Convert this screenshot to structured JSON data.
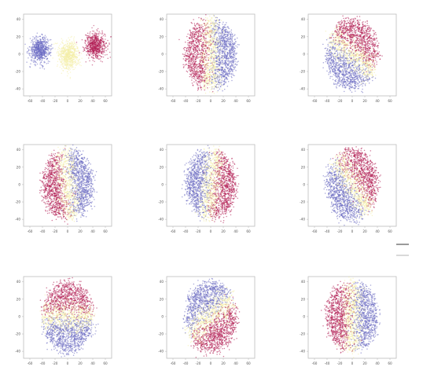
{
  "palette": {
    "blue": "#6a6ac2",
    "yellow": "#f4efa8",
    "red": "#b21f55",
    "frame": "#bdbdbd",
    "tick_text": "#555555"
  },
  "legend_stub_colors": [
    "#9a9a9a",
    "#d9d9d9"
  ],
  "chart_data": [
    {
      "type": "scatter",
      "title": "",
      "xlabel": "",
      "ylabel": "",
      "xlim": [
        -70,
        70
      ],
      "ylim": [
        -48,
        46
      ],
      "xticks": [
        "-60",
        "-40",
        "-20",
        "0",
        "20",
        "40",
        "60"
      ],
      "yticks": [
        "40",
        "20",
        "0",
        "-20",
        "-40"
      ],
      "grid": false,
      "layout_kind": "separated",
      "series": [
        {
          "color": "blue",
          "center": [
            -44,
            5
          ],
          "spread": [
            8,
            7
          ],
          "n": 700
        },
        {
          "color": "yellow",
          "center": [
            2,
            -1
          ],
          "spread": [
            8,
            8
          ],
          "n": 700
        },
        {
          "color": "red",
          "center": [
            44,
            10
          ],
          "spread": [
            8,
            7
          ],
          "n": 700
        }
      ]
    },
    {
      "type": "scatter",
      "title": "",
      "xlabel": "",
      "ylabel": "",
      "xlim": [
        -70,
        70
      ],
      "ylim": [
        -48,
        46
      ],
      "xticks": [
        "-60",
        "-40",
        "-20",
        "0",
        "20",
        "40",
        "60"
      ],
      "yticks": [
        "40",
        "20",
        "0",
        "-20",
        "-40"
      ],
      "grid": false,
      "layout_kind": "disc",
      "red_side_angle_deg": 180
    },
    {
      "type": "scatter",
      "title": "",
      "xlabel": "",
      "ylabel": "",
      "xlim": [
        -70,
        70
      ],
      "ylim": [
        -48,
        46
      ],
      "xticks": [
        "-60",
        "-40",
        "-20",
        "0",
        "20",
        "40",
        "60"
      ],
      "yticks": [
        "40",
        "20",
        "0",
        "-20",
        "-40"
      ],
      "grid": false,
      "layout_kind": "disc",
      "red_side_angle_deg": 60
    },
    {
      "type": "scatter",
      "title": "",
      "xlabel": "",
      "ylabel": "",
      "xlim": [
        -70,
        70
      ],
      "ylim": [
        -48,
        46
      ],
      "xticks": [
        "-60",
        "-40",
        "-20",
        "0",
        "20",
        "40",
        "60"
      ],
      "yticks": [
        "40",
        "20",
        "0",
        "-20",
        "-40"
      ],
      "grid": false,
      "layout_kind": "disc",
      "red_side_angle_deg": 190
    },
    {
      "type": "scatter",
      "title": "",
      "xlabel": "",
      "ylabel": "",
      "xlim": [
        -70,
        70
      ],
      "ylim": [
        -48,
        46
      ],
      "xticks": [
        "-60",
        "-40",
        "-20",
        "0",
        "20",
        "40",
        "60"
      ],
      "yticks": [
        "40",
        "20",
        "0",
        "-20",
        "-40"
      ],
      "grid": false,
      "layout_kind": "disc",
      "red_side_angle_deg": -10
    },
    {
      "type": "scatter",
      "title": "",
      "xlabel": "",
      "ylabel": "",
      "xlim": [
        -70,
        70
      ],
      "ylim": [
        -48,
        46
      ],
      "xticks": [
        "-60",
        "-40",
        "-20",
        "0",
        "20",
        "40",
        "60"
      ],
      "yticks": [
        "40",
        "20",
        "0",
        "-20",
        "-40"
      ],
      "grid": false,
      "layout_kind": "disc",
      "red_side_angle_deg": 40
    },
    {
      "type": "scatter",
      "title": "",
      "xlabel": "",
      "ylabel": "",
      "xlim": [
        -70,
        70
      ],
      "ylim": [
        -48,
        46
      ],
      "xticks": [
        "-60",
        "-40",
        "-20",
        "0",
        "20",
        "40",
        "60"
      ],
      "yticks": [
        "40",
        "20",
        "0",
        "-20",
        "-40"
      ],
      "grid": false,
      "layout_kind": "disc",
      "red_side_angle_deg": 90
    },
    {
      "type": "scatter",
      "title": "",
      "xlabel": "",
      "ylabel": "",
      "xlim": [
        -70,
        70
      ],
      "ylim": [
        -48,
        46
      ],
      "xticks": [
        "-60",
        "-40",
        "-20",
        "0",
        "20",
        "40",
        "60"
      ],
      "yticks": [
        "40",
        "20",
        "0",
        "-20",
        "-40"
      ],
      "grid": false,
      "layout_kind": "disc",
      "red_side_angle_deg": -60
    },
    {
      "type": "scatter",
      "title": "",
      "xlabel": "",
      "ylabel": "",
      "xlim": [
        -70,
        70
      ],
      "ylim": [
        -48,
        46
      ],
      "xticks": [
        "-60",
        "-40",
        "-20",
        "0",
        "20",
        "40",
        "60"
      ],
      "yticks": [
        "40",
        "20",
        "0",
        "-20",
        "-40"
      ],
      "grid": false,
      "layout_kind": "disc",
      "red_side_angle_deg": 180
    }
  ]
}
